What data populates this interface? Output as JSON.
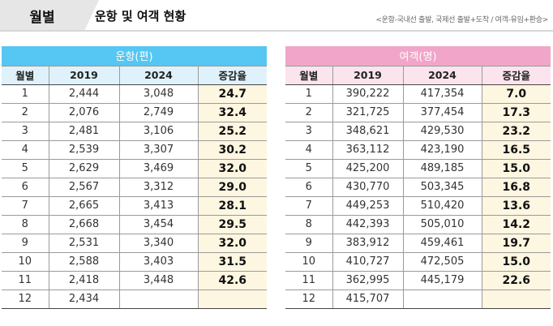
{
  "header": {
    "tab_label": "월별",
    "title": "운항 및 여객 현황",
    "note": "<운항-국내선 출발, 국제선 출발+도착 / 여객-유임+환승>"
  },
  "flights": {
    "group_label": "운항(편)",
    "columns": [
      "월별",
      "2019",
      "2024",
      "증감율"
    ],
    "rows": [
      [
        "1",
        "2,444",
        "3,048",
        "24.7"
      ],
      [
        "2",
        "2,076",
        "2,749",
        "32.4"
      ],
      [
        "3",
        "2,481",
        "3,106",
        "25.2"
      ],
      [
        "4",
        "2,539",
        "3,307",
        "30.2"
      ],
      [
        "5",
        "2,629",
        "3,469",
        "32.0"
      ],
      [
        "6",
        "2,567",
        "3,312",
        "29.0"
      ],
      [
        "7",
        "2,665",
        "3,413",
        "28.1"
      ],
      [
        "8",
        "2,668",
        "3,454",
        "29.5"
      ],
      [
        "9",
        "2,531",
        "3,340",
        "32.0"
      ],
      [
        "10",
        "2,588",
        "3,403",
        "31.5"
      ],
      [
        "11",
        "2,418",
        "3,448",
        "42.6"
      ],
      [
        "12",
        "2,434",
        "",
        ""
      ]
    ]
  },
  "passengers": {
    "group_label": "여객(명)",
    "columns": [
      "월별",
      "2019",
      "2024",
      "증감율"
    ],
    "rows": [
      [
        "1",
        "390,222",
        "417,354",
        "7.0"
      ],
      [
        "2",
        "321,725",
        "377,454",
        "17.3"
      ],
      [
        "3",
        "348,621",
        "429,530",
        "23.2"
      ],
      [
        "4",
        "363,112",
        "423,190",
        "16.5"
      ],
      [
        "5",
        "425,200",
        "489,185",
        "15.0"
      ],
      [
        "6",
        "430,770",
        "503,345",
        "16.8"
      ],
      [
        "7",
        "449,253",
        "510,420",
        "13.6"
      ],
      [
        "8",
        "442,393",
        "505,010",
        "14.2"
      ],
      [
        "9",
        "383,912",
        "459,461",
        "19.7"
      ],
      [
        "10",
        "410,727",
        "472,505",
        "15.0"
      ],
      [
        "11",
        "362,995",
        "445,179",
        "22.6"
      ],
      [
        "12",
        "415,707",
        "",
        ""
      ]
    ]
  }
}
